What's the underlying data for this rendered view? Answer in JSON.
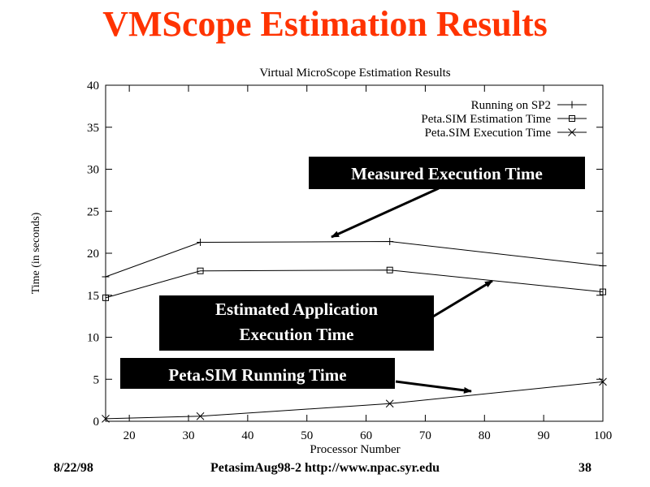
{
  "slide": {
    "title": "VMScope Estimation Results",
    "footer_date": "8/22/98",
    "footer_center": "PetasimAug98-2  http://www.npac.syr.edu",
    "footer_page": "38"
  },
  "callouts": {
    "measured": "Measured Execution Time",
    "estimated_line1": "Estimated Application",
    "estimated_line2": "Execution Time",
    "petasim": "Peta.SIM Running Time"
  },
  "chart_data": {
    "type": "line",
    "title": "Virtual MicroScope Estimation Results",
    "xlabel": "Processor Number",
    "ylabel": "Time (in seconds)",
    "xlim": [
      16,
      100
    ],
    "ylim": [
      0,
      40
    ],
    "xticks": [
      20,
      30,
      40,
      50,
      60,
      70,
      80,
      90,
      100
    ],
    "yticks": [
      0,
      5,
      10,
      15,
      20,
      25,
      30,
      35,
      40
    ],
    "grid": false,
    "legend_position": "top-right",
    "series": [
      {
        "name": "Running on SP2",
        "marker": "+",
        "x": [
          16,
          32,
          64,
          100
        ],
        "y": [
          17.2,
          21.3,
          21.4,
          18.5
        ]
      },
      {
        "name": "Peta.SIM Estimation Time",
        "marker": "square",
        "x": [
          16,
          32,
          64,
          100
        ],
        "y": [
          14.7,
          17.9,
          18.0,
          15.4
        ]
      },
      {
        "name": "Peta.SIM Execution Time",
        "marker": "x",
        "x": [
          16,
          32,
          64,
          100
        ],
        "y": [
          0.3,
          0.6,
          2.1,
          4.7
        ]
      }
    ]
  }
}
